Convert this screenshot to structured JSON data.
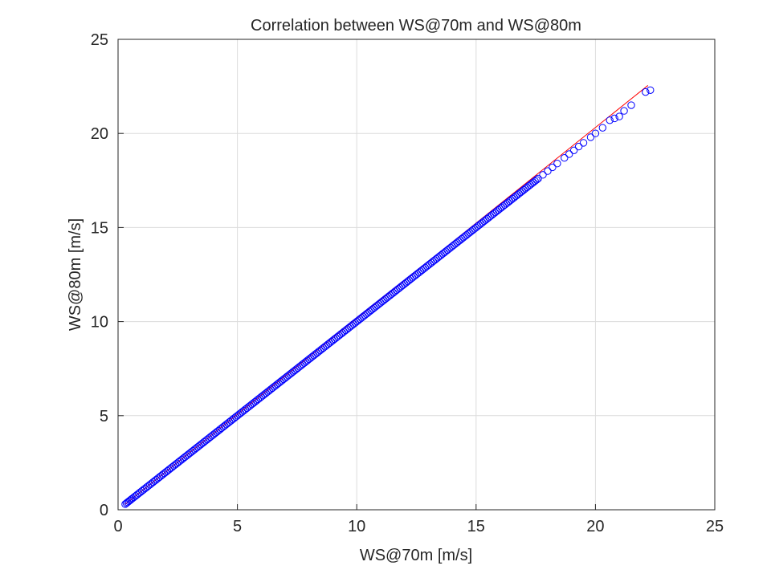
{
  "chart_data": {
    "type": "scatter",
    "title": "Correlation between WS@70m and WS@80m",
    "xlabel": "WS@70m [m/s]",
    "ylabel": "WS@80m [m/s]",
    "xlim": [
      0,
      25
    ],
    "ylim": [
      0,
      25
    ],
    "xticks": [
      "0",
      "5",
      "10",
      "15",
      "20",
      "25"
    ],
    "yticks": [
      "0",
      "5",
      "10",
      "15",
      "20",
      "25"
    ],
    "grid": true,
    "legend": "none",
    "series": [
      {
        "marker": "circle-open",
        "color": "#0000ff",
        "points": [
          [
            0.3,
            0.3
          ],
          [
            0.4,
            0.4
          ],
          [
            0.5,
            0.5
          ],
          [
            0.6,
            0.6
          ],
          [
            0.8,
            0.8
          ],
          [
            1.0,
            1.0
          ],
          [
            1.2,
            1.2
          ],
          [
            1.4,
            1.4
          ],
          [
            1.6,
            1.6
          ],
          [
            1.8,
            1.8
          ],
          [
            2.0,
            2.0
          ],
          [
            2.2,
            2.2
          ],
          [
            2.4,
            2.4
          ],
          [
            2.6,
            2.6
          ],
          [
            2.8,
            2.8
          ],
          [
            3.0,
            3.0
          ],
          [
            3.2,
            3.2
          ],
          [
            3.4,
            3.4
          ],
          [
            3.6,
            3.6
          ],
          [
            3.8,
            3.8
          ],
          [
            4.0,
            4.0
          ],
          [
            4.2,
            4.2
          ],
          [
            4.4,
            4.4
          ],
          [
            4.6,
            4.6
          ],
          [
            4.8,
            4.8
          ],
          [
            5.0,
            5.0
          ],
          [
            5.2,
            5.2
          ],
          [
            5.4,
            5.4
          ],
          [
            5.6,
            5.6
          ],
          [
            5.8,
            5.8
          ],
          [
            6.0,
            6.0
          ],
          [
            6.2,
            6.2
          ],
          [
            6.4,
            6.4
          ],
          [
            6.6,
            6.6
          ],
          [
            6.8,
            6.8
          ],
          [
            7.0,
            7.0
          ],
          [
            7.2,
            7.2
          ],
          [
            7.4,
            7.4
          ],
          [
            7.6,
            7.6
          ],
          [
            7.8,
            7.8
          ],
          [
            8.0,
            8.0
          ],
          [
            8.2,
            8.2
          ],
          [
            8.4,
            8.4
          ],
          [
            8.6,
            8.6
          ],
          [
            8.8,
            8.8
          ],
          [
            9.0,
            9.0
          ],
          [
            9.2,
            9.2
          ],
          [
            9.4,
            9.4
          ],
          [
            9.6,
            9.6
          ],
          [
            9.8,
            9.8
          ],
          [
            10.0,
            10.0
          ],
          [
            10.2,
            10.2
          ],
          [
            10.4,
            10.4
          ],
          [
            10.6,
            10.6
          ],
          [
            10.8,
            10.8
          ],
          [
            11.0,
            11.0
          ],
          [
            11.2,
            11.2
          ],
          [
            11.4,
            11.4
          ],
          [
            11.6,
            11.6
          ],
          [
            11.8,
            11.8
          ],
          [
            12.0,
            12.0
          ],
          [
            12.2,
            12.2
          ],
          [
            12.4,
            12.4
          ],
          [
            12.6,
            12.6
          ],
          [
            12.8,
            12.8
          ],
          [
            13.0,
            13.0
          ],
          [
            13.2,
            13.2
          ],
          [
            13.4,
            13.4
          ],
          [
            13.6,
            13.6
          ],
          [
            13.8,
            13.8
          ],
          [
            14.0,
            14.0
          ],
          [
            14.2,
            14.2
          ],
          [
            14.4,
            14.4
          ],
          [
            14.6,
            14.6
          ],
          [
            14.8,
            14.8
          ],
          [
            15.0,
            15.0
          ],
          [
            15.2,
            15.2
          ],
          [
            15.4,
            15.4
          ],
          [
            15.6,
            15.6
          ],
          [
            15.8,
            15.8
          ],
          [
            16.0,
            16.0
          ],
          [
            16.2,
            16.2
          ],
          [
            16.4,
            16.4
          ],
          [
            16.6,
            16.6
          ],
          [
            16.8,
            16.8
          ],
          [
            17.0,
            17.0
          ],
          [
            17.2,
            17.2
          ],
          [
            17.4,
            17.4
          ],
          [
            17.6,
            17.6
          ],
          [
            17.8,
            17.8
          ],
          [
            18.0,
            18.0
          ],
          [
            18.2,
            18.2
          ],
          [
            18.4,
            18.4
          ],
          [
            18.7,
            18.7
          ],
          [
            18.9,
            18.9
          ],
          [
            19.1,
            19.1
          ],
          [
            19.3,
            19.3
          ],
          [
            19.5,
            19.5
          ],
          [
            19.8,
            19.8
          ],
          [
            20.0,
            20.0
          ],
          [
            20.3,
            20.3
          ],
          [
            20.6,
            20.7
          ],
          [
            20.8,
            20.8
          ],
          [
            21.0,
            20.9
          ],
          [
            21.2,
            21.2
          ],
          [
            21.5,
            21.5
          ],
          [
            22.1,
            22.2
          ],
          [
            22.3,
            22.3
          ]
        ]
      }
    ],
    "fit_line": {
      "color": "#ff0000",
      "x": [
        0.3,
        22.2
      ],
      "y": [
        0.3,
        22.55
      ]
    }
  }
}
